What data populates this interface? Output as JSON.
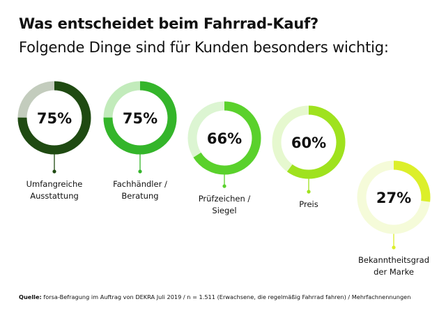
{
  "header": {
    "title": "Was entscheidet beim Fahrrad-Kauf?",
    "subtitle": "Folgende Dinge sind für Kunden besonders wichtig:"
  },
  "footer": {
    "source_label": "Quelle:",
    "source_text": " forsa-Befragung im Auftrag von DEKRA Juli 2019 / n = 1.511 (Erwachsene, die regelmäßig Fahrrad fahren) / Mehrfachnennungen"
  },
  "chart_data": {
    "type": "donut",
    "unit": "%",
    "max": 100,
    "items": [
      {
        "label_lines": [
          "Umfangreiche",
          "Ausstattung"
        ],
        "value": 75,
        "value_label": "75%",
        "color": "#1f4a12",
        "track_color": "#c3ccbd"
      },
      {
        "label_lines": [
          "Fachhändler /",
          "Beratung"
        ],
        "value": 75,
        "value_label": "75%",
        "color": "#34b52a",
        "track_color": "#c2ebbb"
      },
      {
        "label_lines": [
          "Prüfzeichen /",
          "Siegel"
        ],
        "value": 66,
        "value_label": "66%",
        "color": "#5ad12c",
        "track_color": "#dcf5d2"
      },
      {
        "label_lines": [
          "Preis"
        ],
        "value": 60,
        "value_label": "60%",
        "color": "#9fe21e",
        "track_color": "#e6f8cf"
      },
      {
        "label_lines": [
          "Bekanntheitsgrad",
          "der Marke"
        ],
        "value": 27,
        "value_label": "27%",
        "color": "#dcef2a",
        "track_color": "#f5fbd9"
      }
    ]
  }
}
